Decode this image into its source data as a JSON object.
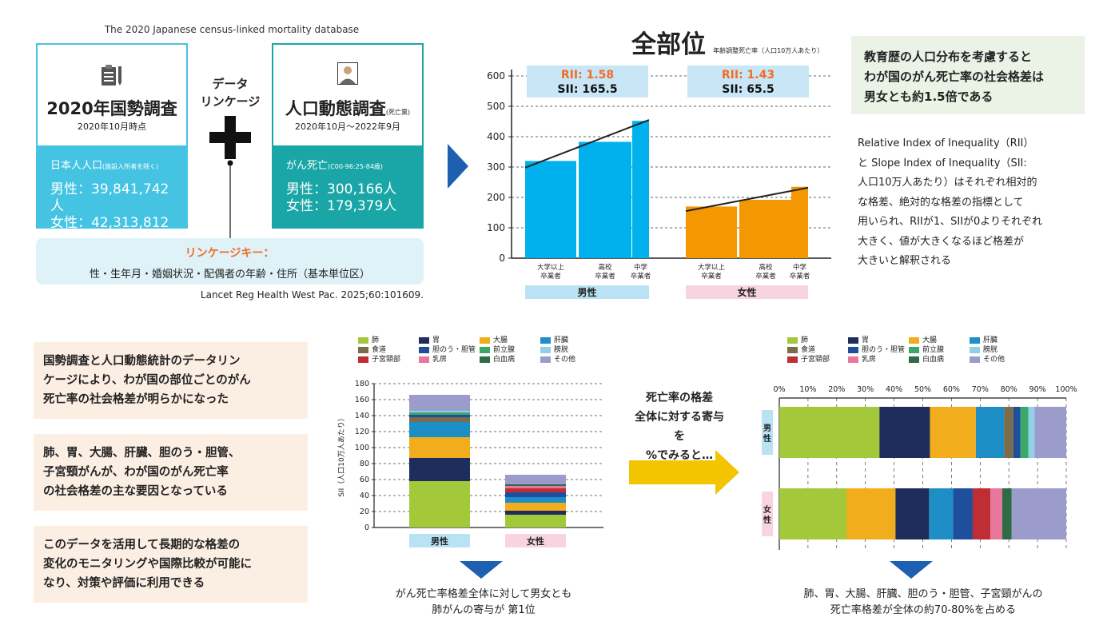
{
  "database_title": "The 2020 Japanese census-linked mortality database",
  "census": {
    "name": "2020年国勢調査",
    "period": "2020年10月時点",
    "pop_label": "日本人人口",
    "pop_note": "(施設入所者を除く)",
    "male": "男性：39,841,742人",
    "female": "女性：42,313,812人"
  },
  "vital": {
    "name": "人口動態調査",
    "name_note": "(死亡票)",
    "period": "2020年10月～2022年9月",
    "death_label": "がん死亡",
    "death_note": "(C00-96:25-84歳)",
    "male": "男性：300,166人",
    "female": "女性：179,379人"
  },
  "linkage": {
    "line1": "データ",
    "line2": "リンケージ"
  },
  "linkage_key": {
    "title": "リンケージキー：",
    "value": "性・生年月・婚姻状況・配偶者の年齢・住所（基本単位区）"
  },
  "citation": "Lancet Reg Health West Pac. 2025;60:101609.",
  "summary_green": [
    "教育歴の人口分布を考慮すると",
    "わが国のがん死亡率の社会格差は",
    "男女とも約1.5倍である"
  ],
  "rii_text": [
    "Relative Index of Inequality（RII）",
    "と Slope Index of Inequality（SII:",
    "人口10万人あたり）はそれぞれ相対的",
    "な格差、絶対的な格差の指標として",
    "用いられ、RIIが1、SIIが0よりそれぞれ",
    "大きく、値が大きくなるほど格差が",
    "大きいと解釈される"
  ],
  "notes": [
    [
      "国勢調査と人口動態統計のデータリン",
      "ケージにより、わが国の部位ごとのがん",
      "死亡率の社会格差が明らかになった"
    ],
    [
      "肺、胃、大腸、肝臓、胆のう・胆管、",
      "子宮頸がんが、わが国のがん死亡率",
      "の社会格差の主な要因となっている"
    ],
    [
      "このデータを活用して長期的な格差の",
      "変化のモニタリングや国際比較が可能に",
      "なり、対策や評価に利用できる"
    ]
  ],
  "mid_text": [
    "死亡率の格差",
    "全体に対する寄与を",
    "%でみると…"
  ],
  "caption_sii": [
    "がん死亡率格差全体に対して男女とも",
    "肺がんの寄与が 第1位"
  ],
  "caption_pct": [
    "肺、胃、大腸、肝臓、胆のう・胆管、子宮頸がんの",
    "死亡率格差が全体の約70-80%を占める"
  ],
  "colors": {
    "lung": "#a3c93b",
    "stomach": "#1f2d5c",
    "colorectal": "#f2ad1c",
    "liver": "#1d8fc6",
    "esophagus": "#7b6c4e",
    "biliary": "#1f4f9c",
    "prostate": "#3aa868",
    "bladder": "#94cfe8",
    "cervix": "#c12d35",
    "breast": "#e8779c",
    "leukemia": "#2f6b44",
    "other": "#9b9bcc",
    "male_bar": "#00b1ee",
    "female_bar": "#f39800",
    "rii": "#f26c22"
  },
  "chart_data": [
    {
      "type": "bar",
      "title": "全部位",
      "subtitle": "年齢調整死亡率（人口10万人あたり）",
      "ylim": [
        0,
        600
      ],
      "yticks": [
        0,
        100,
        200,
        300,
        400,
        500,
        600
      ],
      "groups": [
        {
          "name": "男性",
          "categories": [
            "大学以上\n卒業者",
            "高校\n卒業者",
            "中学\n卒業者"
          ],
          "values": [
            320,
            383,
            452
          ],
          "trend": [
            298,
            455
          ],
          "rii": "RII: 1.58",
          "sii": "SII: 165.5"
        },
        {
          "name": "女性",
          "categories": [
            "大学以上\n卒業者",
            "高校\n卒業者",
            "中学\n卒業者"
          ],
          "values": [
            170,
            192,
            235
          ],
          "trend": [
            155,
            232
          ],
          "rii": "RII: 1.43",
          "sii": "SII: 65.5"
        }
      ]
    },
    {
      "type": "stacked-bar",
      "ylabel": "SII（人口10万人あたり）",
      "ylim": [
        0,
        180
      ],
      "yticks": [
        0,
        20,
        40,
        60,
        80,
        100,
        120,
        140,
        160,
        180
      ],
      "legend": [
        "肺",
        "胃",
        "大腸",
        "肝臓",
        "食道",
        "胆のう・胆管",
        "前立腺",
        "膀胱",
        "子宮頸部",
        "乳房",
        "白血病",
        "その他"
      ],
      "categories": [
        "男性",
        "女性"
      ],
      "series": [
        {
          "name": "肺",
          "values": [
            58,
            16
          ]
        },
        {
          "name": "胃",
          "values": [
            29,
            5
          ]
        },
        {
          "name": "大腸",
          "values": [
            26,
            10
          ]
        },
        {
          "name": "肝臓",
          "values": [
            19,
            7
          ]
        },
        {
          "name": "食道",
          "values": [
            6,
            0
          ]
        },
        {
          "name": "胆のう・胆管",
          "values": [
            3,
            6
          ]
        },
        {
          "name": "前立腺",
          "values": [
            3,
            0
          ]
        },
        {
          "name": "膀胱",
          "values": [
            2,
            0
          ]
        },
        {
          "name": "子宮頸部",
          "values": [
            0,
            5
          ]
        },
        {
          "name": "乳房",
          "values": [
            0,
            3
          ]
        },
        {
          "name": "白血病",
          "values": [
            0,
            2
          ]
        },
        {
          "name": "その他",
          "values": [
            20,
            12
          ]
        }
      ]
    },
    {
      "type": "stacked-bar-horizontal",
      "xlabel": "%",
      "xticks": [
        "0%",
        "10%",
        "20%",
        "30%",
        "40%",
        "50%",
        "60%",
        "70%",
        "80%",
        "90%",
        "100%"
      ],
      "legend": [
        "肺",
        "胃",
        "大腸",
        "肝臓",
        "食道",
        "胆のう・胆管",
        "前立腺",
        "膀胱",
        "子宮頸部",
        "乳房",
        "白血病",
        "その他"
      ],
      "rows": [
        {
          "label": "男性",
          "segments": [
            {
              "name": "肺",
              "value": 34.9
            },
            {
              "name": "胃",
              "value": 17.6
            },
            {
              "name": "大腸",
              "value": 16.0
            },
            {
              "name": "肝臓",
              "value": 9.8
            },
            {
              "name": "食道",
              "value": 3.3
            },
            {
              "name": "胆のう・胆管",
              "value": 2.4
            },
            {
              "name": "前立腺",
              "value": 2.8
            },
            {
              "name": "膀胱",
              "value": 2.2
            },
            {
              "name": "その他",
              "value": 11.0
            }
          ]
        },
        {
          "label": "女性",
          "segments": [
            {
              "name": "肺",
              "value": 23.4
            },
            {
              "name": "大腸",
              "value": 17.1
            },
            {
              "name": "胃",
              "value": 11.7
            },
            {
              "name": "肝臓",
              "value": 8.4
            },
            {
              "name": "胆のう・胆管",
              "value": 6.8
            },
            {
              "name": "子宮頸部",
              "value": 6.2
            },
            {
              "name": "乳房",
              "value": 4.1
            },
            {
              "name": "白血病",
              "value": 3.3
            },
            {
              "name": "その他",
              "value": 19.0
            }
          ]
        }
      ]
    }
  ]
}
